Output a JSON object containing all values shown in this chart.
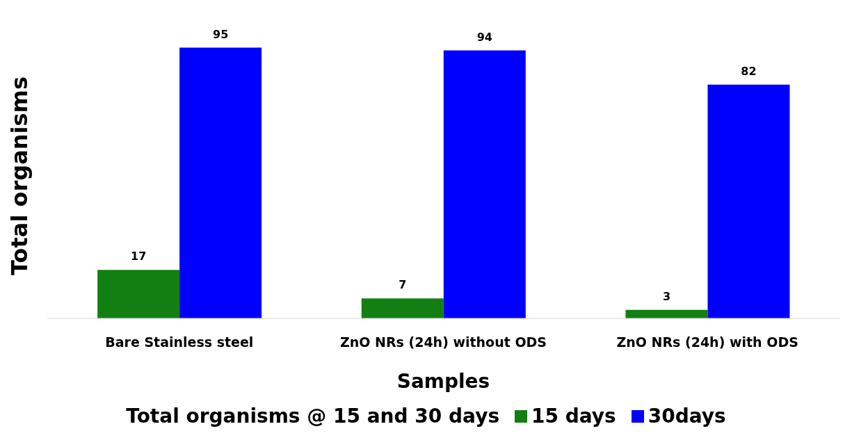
{
  "chart_data": {
    "type": "bar",
    "xlabel": "Samples",
    "ylabel": "Total organisms",
    "legend_title": "Total organisms @ 15 and 30 days",
    "categories": [
      "Bare Stainless steel",
      "ZnO NRs (24h) without ODS",
      "ZnO NRs (24h) with ODS"
    ],
    "series": [
      {
        "name": "15 days",
        "color": "#137f13",
        "values": [
          17,
          7,
          3
        ]
      },
      {
        "name": "30days",
        "color": "#0000ff",
        "values": [
          95,
          94,
          82
        ]
      }
    ],
    "data_labels": true,
    "legend": "bottom"
  }
}
